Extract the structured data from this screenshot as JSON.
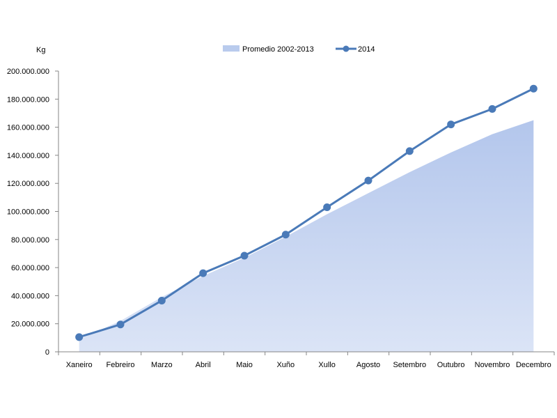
{
  "chart_data": {
    "type": "line",
    "title": "",
    "xlabel": "",
    "ylabel": "Kg",
    "categories": [
      "Xaneiro",
      "Febreiro",
      "Marzo",
      "Abril",
      "Maio",
      "Xuño",
      "Xullo",
      "Agosto",
      "Setembro",
      "Outubro",
      "Novembro",
      "Decembro"
    ],
    "ylim": [
      0,
      200000000
    ],
    "yticks": [
      0,
      20000000,
      40000000,
      60000000,
      80000000,
      100000000,
      120000000,
      140000000,
      160000000,
      180000000,
      200000000
    ],
    "ytick_labels": [
      "0",
      "20.000.000",
      "40.000.000",
      "60.000.000",
      "80.000.000",
      "100.000.000",
      "120.000.000",
      "140.000.000",
      "160.000.000",
      "180.000.000",
      "200.000.000"
    ],
    "legend_position": "top-center",
    "grid": false,
    "series": [
      {
        "name": "Promedio 2002-2013",
        "type": "area",
        "color": "#b9cbed",
        "values": [
          9000000,
          22000000,
          39000000,
          54000000,
          67000000,
          82000000,
          98000000,
          113000000,
          128000000,
          142000000,
          155000000,
          165000000
        ]
      },
      {
        "name": "2014",
        "type": "line",
        "color": "#4a7ab8",
        "values": [
          10500000,
          19500000,
          36500000,
          56000000,
          68500000,
          83500000,
          103000000,
          122000000,
          143000000,
          162000000,
          173000000,
          187500000
        ]
      }
    ]
  }
}
